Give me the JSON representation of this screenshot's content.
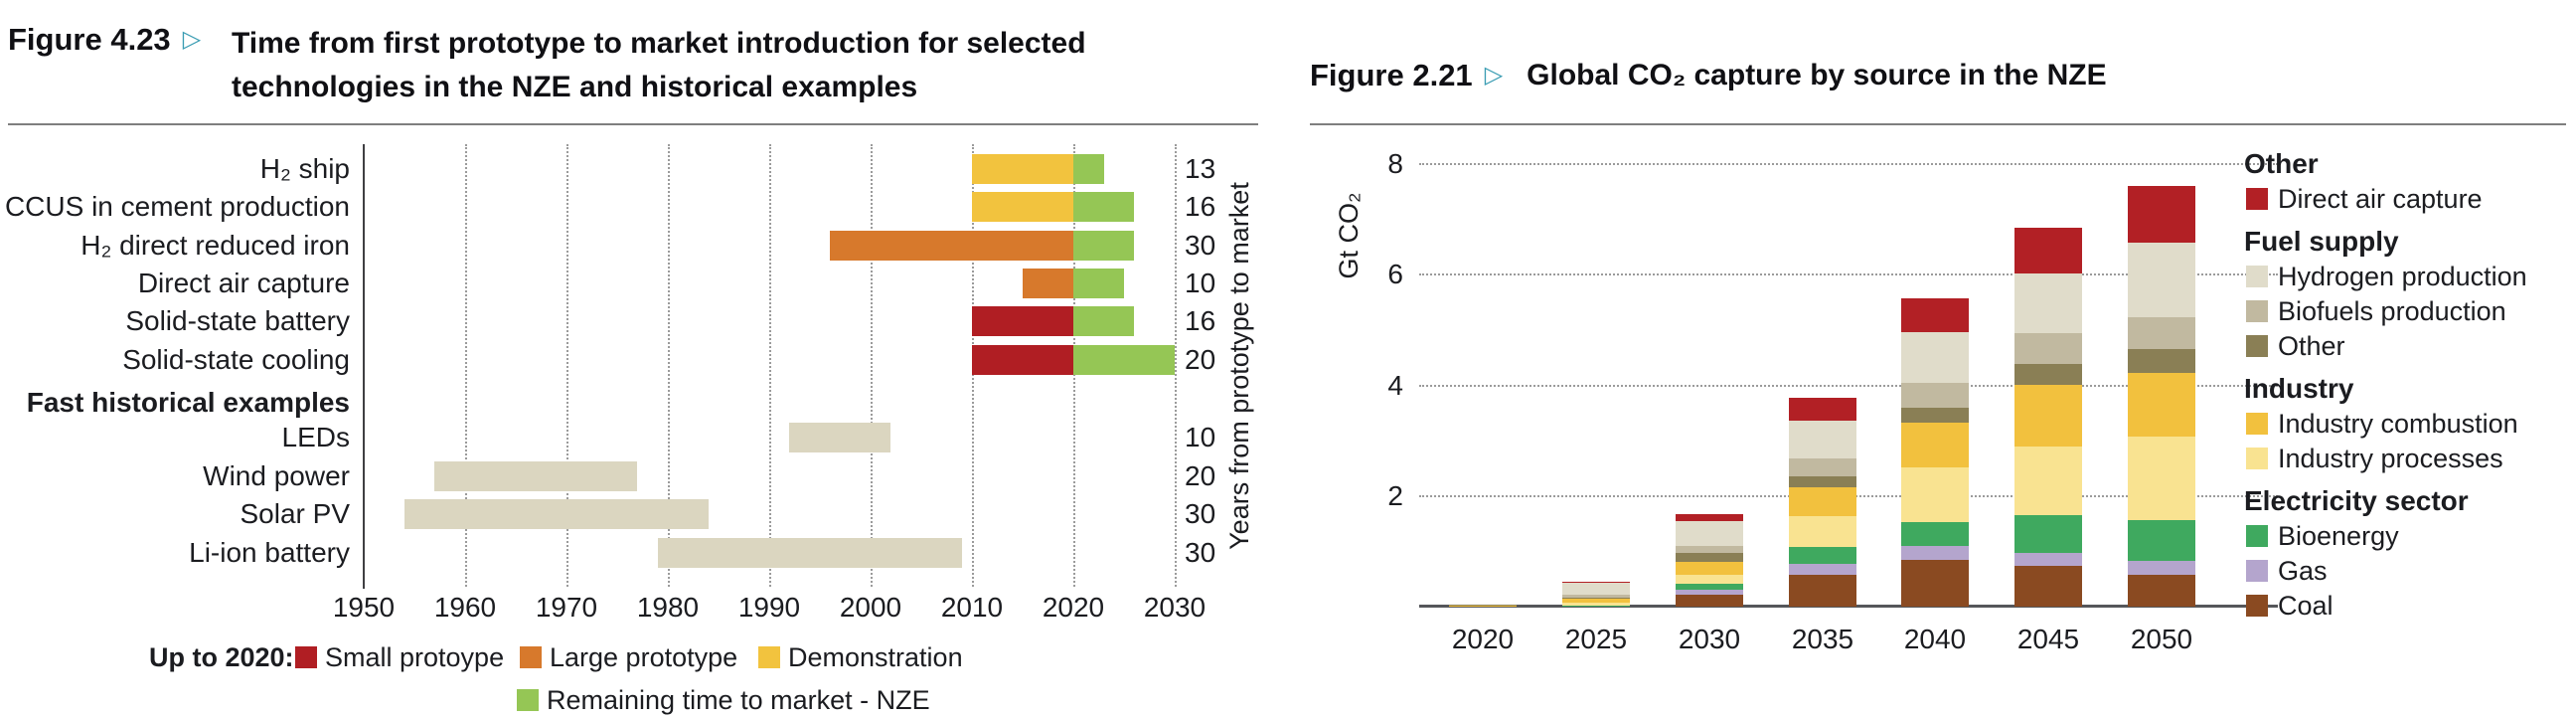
{
  "accent": {
    "figure_arrow_teal": "#3B9DB3",
    "rule_gray": "#7F7F7F"
  },
  "chart_data": [
    {
      "id": "fig-4-23",
      "type": "bar",
      "orientation": "horizontal",
      "figure_label": "Figure 4.23",
      "arrow": "▷",
      "title_line1": "Time from first prototype to market introduction for selected",
      "title_line2": "technologies in the NZE and historical examples",
      "xlim": [
        1950,
        2030
      ],
      "x_ticks": [
        "1950",
        "1960",
        "1970",
        "1980",
        "1990",
        "2000",
        "2010",
        "2020",
        "2030"
      ],
      "grid": "vertical-dotted",
      "right_axis_label": "Years from prototype to market",
      "phase_colors": {
        "small_prototype": "#B01E23",
        "large_prototype": "#D7792C",
        "demonstration": "#F2C33E",
        "nze": "#95C655",
        "historical": "#DBD6C0"
      },
      "rows": [
        {
          "label": "H₂ ship",
          "years": 13,
          "segments": [
            {
              "phase": "demonstration",
              "start": 2010,
              "end": 2020
            },
            {
              "phase": "nze",
              "start": 2020,
              "end": 2023
            }
          ]
        },
        {
          "label": "CCUS in cement production",
          "years": 16,
          "segments": [
            {
              "phase": "demonstration",
              "start": 2010,
              "end": 2020
            },
            {
              "phase": "nze",
              "start": 2020,
              "end": 2026
            }
          ]
        },
        {
          "label": "H₂ direct reduced iron",
          "years": 30,
          "segments": [
            {
              "phase": "large_prototype",
              "start": 1996,
              "end": 2020
            },
            {
              "phase": "nze",
              "start": 2020,
              "end": 2026
            }
          ]
        },
        {
          "label": "Direct air capture",
          "years": 10,
          "segments": [
            {
              "phase": "large_prototype",
              "start": 2015,
              "end": 2020
            },
            {
              "phase": "nze",
              "start": 2020,
              "end": 2025
            }
          ]
        },
        {
          "label": "Solid-state battery",
          "years": 16,
          "segments": [
            {
              "phase": "small_prototype",
              "start": 2010,
              "end": 2020
            },
            {
              "phase": "nze",
              "start": 2020,
              "end": 2026
            }
          ]
        },
        {
          "label": "Solid-state cooling",
          "years": 20,
          "segments": [
            {
              "phase": "small_prototype",
              "start": 2010,
              "end": 2020
            },
            {
              "phase": "nze",
              "start": 2020,
              "end": 2030
            }
          ]
        },
        {
          "label": "Fast historical examples",
          "header": true
        },
        {
          "label": "LEDs",
          "years": 10,
          "segments": [
            {
              "phase": "historical",
              "start": 1992,
              "end": 2002
            }
          ]
        },
        {
          "label": "Wind power",
          "years": 20,
          "segments": [
            {
              "phase": "historical",
              "start": 1957,
              "end": 1977
            }
          ]
        },
        {
          "label": "Solar PV",
          "years": 30,
          "segments": [
            {
              "phase": "historical",
              "start": 1954,
              "end": 1984
            }
          ]
        },
        {
          "label": "Li-ion battery",
          "years": 30,
          "segments": [
            {
              "phase": "historical",
              "start": 1979,
              "end": 2009
            }
          ]
        }
      ],
      "legend_prefix": "Up to 2020:",
      "legend_row1": [
        {
          "label": "Small protoype",
          "phase": "small_prototype"
        },
        {
          "label": "Large prototype",
          "phase": "large_prototype"
        },
        {
          "label": "Demonstration",
          "phase": "demonstration"
        }
      ],
      "legend_row2": [
        {
          "label": "Remaining time to market - NZE",
          "phase": "nze"
        }
      ]
    },
    {
      "id": "fig-2-21",
      "type": "stacked-bar",
      "figure_label": "Figure 2.21",
      "arrow": "▷",
      "title": "Global CO₂ capture by source in the NZE",
      "ylabel": "Gt CO₂",
      "ylim": [
        0,
        8
      ],
      "y_ticks": [
        "2",
        "4",
        "6",
        "8"
      ],
      "grid": "horizontal-dotted",
      "legend_position": "right",
      "categories": [
        "2020",
        "2025",
        "2030",
        "2035",
        "2040",
        "2045",
        "2050"
      ],
      "series": [
        {
          "key": "coal",
          "name": "Coal",
          "color": "#8A4A21",
          "values": [
            0.01,
            0.01,
            0.22,
            0.58,
            0.85,
            0.73,
            0.58
          ]
        },
        {
          "key": "gas",
          "name": "Gas",
          "color": "#B4A5CD",
          "values": [
            0,
            0,
            0.09,
            0.19,
            0.25,
            0.24,
            0.25
          ]
        },
        {
          "key": "bioenergy",
          "name": "Bioenergy",
          "color": "#3FA95F",
          "values": [
            0,
            0.01,
            0.11,
            0.31,
            0.43,
            0.69,
            0.74
          ]
        },
        {
          "key": "industry_processes",
          "name": "Industry processes",
          "color": "#F9E391",
          "values": [
            0,
            0.05,
            0.15,
            0.56,
            0.99,
            1.24,
            1.51
          ]
        },
        {
          "key": "industry_combustion",
          "name": "Industry combustion",
          "color": "#F2C13E",
          "values": [
            0.01,
            0.08,
            0.24,
            0.52,
            0.81,
            1.11,
            1.15
          ]
        },
        {
          "key": "other_fuel_supply",
          "name": "Other",
          "color": "#8A7F55",
          "values": [
            0.02,
            0.02,
            0.16,
            0.2,
            0.27,
            0.37,
            0.42
          ]
        },
        {
          "key": "biofuels",
          "name": "Biofuels production",
          "color": "#C1B9A0",
          "values": [
            0,
            0.05,
            0.13,
            0.32,
            0.44,
            0.57,
            0.58
          ]
        },
        {
          "key": "hydrogen",
          "name": "Hydrogen production",
          "color": "#E0DCCA",
          "values": [
            0,
            0.21,
            0.45,
            0.69,
            0.93,
            1.07,
            1.36
          ]
        },
        {
          "key": "dac",
          "name": "Direct air capture",
          "color": "#B22025",
          "values": [
            0,
            0.02,
            0.13,
            0.41,
            0.61,
            0.84,
            1.01
          ]
        }
      ],
      "legend_groups": [
        {
          "header": "Other",
          "items": [
            {
              "key": "dac",
              "label": "Direct air capture"
            }
          ]
        },
        {
          "header": "Fuel supply",
          "items": [
            {
              "key": "hydrogen",
              "label": "Hydrogen production"
            },
            {
              "key": "biofuels",
              "label": "Biofuels production"
            },
            {
              "key": "other_fuel_supply",
              "label": "Other"
            }
          ]
        },
        {
          "header": "Industry",
          "items": [
            {
              "key": "industry_combustion",
              "label": "Industry combustion"
            },
            {
              "key": "industry_processes",
              "label": "Industry processes"
            }
          ]
        },
        {
          "header": "Electricity sector",
          "items": [
            {
              "key": "bioenergy",
              "label": "Bioenergy"
            },
            {
              "key": "gas",
              "label": "Gas"
            },
            {
              "key": "coal",
              "label": "Coal"
            }
          ]
        }
      ]
    }
  ]
}
